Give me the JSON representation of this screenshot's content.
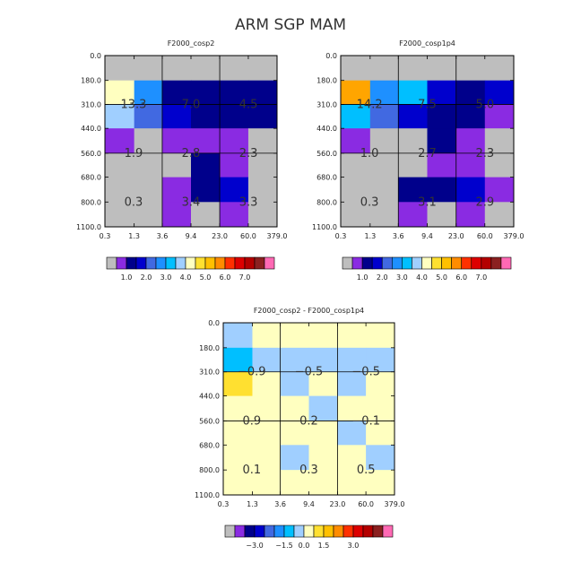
{
  "title": "ARM SGP MAM",
  "colors": {
    "background": "#ffffff",
    "grid": "#000000"
  },
  "chart_data": [
    {
      "type": "heatmap",
      "title": "F2000_cosp2",
      "x_tick_labels": [
        "0.3",
        "1.3",
        "3.6",
        "9.4",
        "23.0",
        "60.0",
        "379.0"
      ],
      "y_tick_labels": [
        "0.0",
        "180.0",
        "310.0",
        "440.0",
        "560.0",
        "680.0",
        "800.0",
        "1100.0"
      ],
      "grid": [
        [
          "#bebebe",
          "#bebebe",
          "#bebebe",
          "#bebebe",
          "#bebebe",
          "#bebebe"
        ],
        [
          "#ffffc0",
          "#1e90ff",
          "#00008b",
          "#00008b",
          "#00008b",
          "#00008b"
        ],
        [
          "#a0cfff",
          "#4169e1",
          "#0000cd",
          "#00008b",
          "#00008b",
          "#00008b"
        ],
        [
          "#8a2be2",
          "#bebebe",
          "#8a2be2",
          "#8a2be2",
          "#8a2be2",
          "#bebebe"
        ],
        [
          "#bebebe",
          "#bebebe",
          "#bebebe",
          "#00008b",
          "#8a2be2",
          "#bebebe"
        ],
        [
          "#bebebe",
          "#bebebe",
          "#8a2be2",
          "#00008b",
          "#0000cd",
          "#bebebe"
        ],
        [
          "#bebebe",
          "#bebebe",
          "#8a2be2",
          "#bebebe",
          "#8a2be2",
          "#bebebe"
        ]
      ],
      "annotations": [
        {
          "col": 0,
          "row": 1,
          "text": "13.3"
        },
        {
          "col": 1,
          "row": 1,
          "text": "7.0"
        },
        {
          "col": 2,
          "row": 1,
          "text": "4.5"
        },
        {
          "col": 0,
          "row": 2,
          "text": "1.9"
        },
        {
          "col": 1,
          "row": 2,
          "text": "2.8"
        },
        {
          "col": 2,
          "row": 2,
          "text": "2.3"
        },
        {
          "col": 0,
          "row": 3,
          "text": "0.3"
        },
        {
          "col": 1,
          "row": 3,
          "text": "3.4"
        },
        {
          "col": 2,
          "row": 3,
          "text": "3.3"
        }
      ],
      "colorbar": {
        "colors": [
          "#bebebe",
          "#8a2be2",
          "#00008b",
          "#0000cd",
          "#4169e1",
          "#1e90ff",
          "#00bfff",
          "#a0cfff",
          "#ffffc0",
          "#ffe030",
          "#ffc000",
          "#ff8c00",
          "#ff3000",
          "#dd0000",
          "#b40000",
          "#8b2020",
          "#ff69b4"
        ],
        "labels": [
          "1.0",
          "2.0",
          "3.0",
          "4.0",
          "5.0",
          "6.0",
          "7.0"
        ]
      }
    },
    {
      "type": "heatmap",
      "title": "F2000_cosp1p4",
      "x_tick_labels": [
        "0.3",
        "1.3",
        "3.6",
        "9.4",
        "23.0",
        "60.0",
        "379.0"
      ],
      "y_tick_labels": [
        "0.0",
        "180.0",
        "310.0",
        "440.0",
        "560.0",
        "680.0",
        "800.0",
        "1100.0"
      ],
      "grid": [
        [
          "#bebebe",
          "#bebebe",
          "#bebebe",
          "#bebebe",
          "#bebebe",
          "#bebebe"
        ],
        [
          "#ffa500",
          "#1e90ff",
          "#00bfff",
          "#0000cd",
          "#00008b",
          "#0000cd"
        ],
        [
          "#00bfff",
          "#4169e1",
          "#0000cd",
          "#00008b",
          "#00008b",
          "#8a2be2"
        ],
        [
          "#8a2be2",
          "#bebebe",
          "#bebebe",
          "#00008b",
          "#8a2be2",
          "#bebebe"
        ],
        [
          "#bebebe",
          "#bebebe",
          "#bebebe",
          "#8a2be2",
          "#8a2be2",
          "#bebebe"
        ],
        [
          "#bebebe",
          "#bebebe",
          "#00008b",
          "#00008b",
          "#0000cd",
          "#8a2be2"
        ],
        [
          "#bebebe",
          "#bebebe",
          "#8a2be2",
          "#bebebe",
          "#8a2be2",
          "#bebebe"
        ]
      ],
      "annotations": [
        {
          "col": 0,
          "row": 1,
          "text": "14.2"
        },
        {
          "col": 1,
          "row": 1,
          "text": "7.5"
        },
        {
          "col": 2,
          "row": 1,
          "text": "5.0"
        },
        {
          "col": 0,
          "row": 2,
          "text": "1.0"
        },
        {
          "col": 1,
          "row": 2,
          "text": "2.7"
        },
        {
          "col": 2,
          "row": 2,
          "text": "2.3"
        },
        {
          "col": 0,
          "row": 3,
          "text": "0.3"
        },
        {
          "col": 1,
          "row": 3,
          "text": "3.1"
        },
        {
          "col": 2,
          "row": 3,
          "text": "2.9"
        }
      ],
      "colorbar": {
        "colors": [
          "#bebebe",
          "#8a2be2",
          "#00008b",
          "#0000cd",
          "#4169e1",
          "#1e90ff",
          "#00bfff",
          "#a0cfff",
          "#ffffc0",
          "#ffe030",
          "#ffc000",
          "#ff8c00",
          "#ff3000",
          "#dd0000",
          "#b40000",
          "#8b2020",
          "#ff69b4"
        ],
        "labels": [
          "1.0",
          "2.0",
          "3.0",
          "4.0",
          "5.0",
          "6.0",
          "7.0"
        ]
      }
    },
    {
      "type": "heatmap",
      "title": "F2000_cosp2 - F2000_cosp1p4",
      "x_tick_labels": [
        "0.3",
        "1.3",
        "3.6",
        "9.4",
        "23.0",
        "60.0",
        "379.0"
      ],
      "y_tick_labels": [
        "0.0",
        "180.0",
        "310.0",
        "440.0",
        "560.0",
        "680.0",
        "800.0",
        "1100.0"
      ],
      "grid": [
        [
          "#a0cfff",
          "#ffffc0",
          "#ffffc0",
          "#ffffc0",
          "#ffffc0",
          "#ffffc0"
        ],
        [
          "#00bfff",
          "#a0cfff",
          "#a0cfff",
          "#a0cfff",
          "#a0cfff",
          "#a0cfff"
        ],
        [
          "#ffe030",
          "#ffffc0",
          "#a0cfff",
          "#ffffc0",
          "#a0cfff",
          "#ffffc0"
        ],
        [
          "#ffffc0",
          "#ffffc0",
          "#ffffc0",
          "#a0cfff",
          "#ffffc0",
          "#ffffc0"
        ],
        [
          "#ffffc0",
          "#ffffc0",
          "#ffffc0",
          "#ffffc0",
          "#a0cfff",
          "#ffffc0"
        ],
        [
          "#ffffc0",
          "#ffffc0",
          "#a0cfff",
          "#ffffc0",
          "#ffffc0",
          "#a0cfff"
        ],
        [
          "#ffffc0",
          "#ffffc0",
          "#ffffc0",
          "#ffffc0",
          "#ffffc0",
          "#ffffc0"
        ]
      ],
      "annotations": [
        {
          "col": 0,
          "row": 1,
          "text": "−0.9"
        },
        {
          "col": 1,
          "row": 1,
          "text": "−0.5"
        },
        {
          "col": 2,
          "row": 1,
          "text": "−0.5"
        },
        {
          "col": 0,
          "row": 2,
          "text": "0.9"
        },
        {
          "col": 1,
          "row": 2,
          "text": "0.2"
        },
        {
          "col": 2,
          "row": 2,
          "text": "−0.1"
        },
        {
          "col": 0,
          "row": 3,
          "text": "0.1"
        },
        {
          "col": 1,
          "row": 3,
          "text": "0.3"
        },
        {
          "col": 2,
          "row": 3,
          "text": "0.5"
        }
      ],
      "colorbar": {
        "colors": [
          "#bebebe",
          "#8a2be2",
          "#00008b",
          "#0000cd",
          "#4169e1",
          "#1e90ff",
          "#00bfff",
          "#a0cfff",
          "#ffffc0",
          "#ffe030",
          "#ffc000",
          "#ff8c00",
          "#ff3000",
          "#dd0000",
          "#b40000",
          "#8b2020",
          "#ff69b4"
        ],
        "labels": [
          "−3.0",
          "−1.5",
          "0.0",
          "1.5",
          "3.0"
        ]
      }
    }
  ]
}
